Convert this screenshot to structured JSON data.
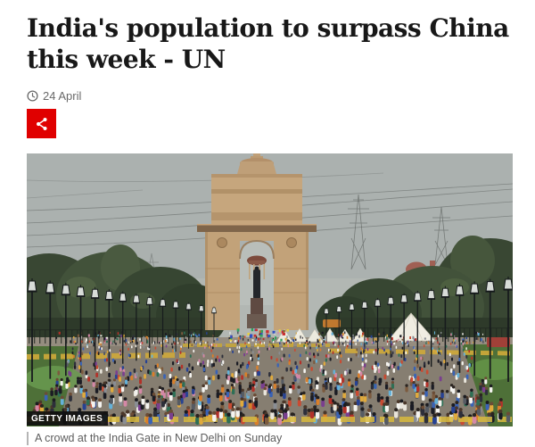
{
  "article": {
    "headline": "India's population to surpass China this week - UN",
    "published": "24 April"
  },
  "image": {
    "credit": "GETTY IMAGES",
    "caption": "A crowd at the India Gate in New Delhi on Sunday"
  },
  "icons": {
    "clock": "clock-icon",
    "share": "share-icon"
  },
  "colors": {
    "accent_red": "#e00000",
    "headline_text": "#181818",
    "meta_text": "#696969",
    "caption_text": "#5d5d5d"
  }
}
